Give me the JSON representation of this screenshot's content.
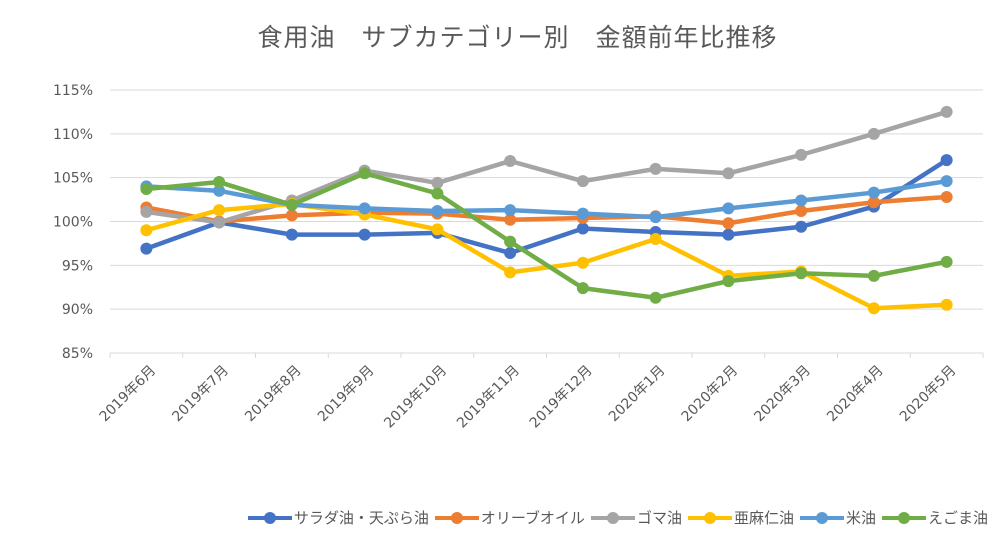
{
  "chart_data": {
    "type": "line",
    "title": "食用油　サブカテゴリー別　金額前年比推移",
    "xlabel": "",
    "ylabel": "",
    "ylim": [
      85,
      115
    ],
    "ytick_step": 5,
    "ytick_labels": [
      "85%",
      "90%",
      "95%",
      "100%",
      "105%",
      "110%",
      "115%"
    ],
    "grid": true,
    "legend_position": "bottom",
    "categories": [
      "2019年6月",
      "2019年7月",
      "2019年8月",
      "2019年9月",
      "2019年10月",
      "2019年11月",
      "2019年12月",
      "2020年1月",
      "2020年2月",
      "2020年3月",
      "2020年4月",
      "2020年5月"
    ],
    "series": [
      {
        "name": "サラダ油・天ぷら油",
        "color": "#4472C4",
        "values": [
          96.9,
          99.9,
          98.5,
          98.5,
          98.7,
          96.4,
          99.2,
          98.8,
          98.5,
          99.4,
          101.7,
          107.0
        ]
      },
      {
        "name": "オリーブオイル",
        "color": "#ED7D31",
        "values": [
          101.6,
          100.0,
          100.7,
          101.0,
          100.9,
          100.2,
          100.4,
          100.6,
          99.8,
          101.2,
          102.2,
          102.8
        ]
      },
      {
        "name": "ゴマ油",
        "color": "#A5A5A5",
        "values": [
          101.1,
          99.9,
          102.4,
          105.8,
          104.4,
          106.9,
          104.6,
          106.0,
          105.5,
          107.6,
          110.0,
          112.5
        ]
      },
      {
        "name": "亜麻仁油",
        "color": "#FFC000",
        "values": [
          99.0,
          101.3,
          102.0,
          100.8,
          99.1,
          94.2,
          95.3,
          98.0,
          93.8,
          94.3,
          90.1,
          90.5
        ]
      },
      {
        "name": "米油",
        "color": "#5B9BD5",
        "values": [
          104.0,
          103.5,
          101.9,
          101.5,
          101.2,
          101.3,
          100.9,
          100.5,
          101.5,
          102.4,
          103.3,
          104.6
        ]
      },
      {
        "name": "えごま油",
        "color": "#70AD47",
        "values": [
          103.7,
          104.5,
          101.9,
          105.5,
          103.2,
          97.7,
          92.4,
          91.3,
          93.2,
          94.1,
          93.8,
          95.4
        ]
      }
    ]
  }
}
